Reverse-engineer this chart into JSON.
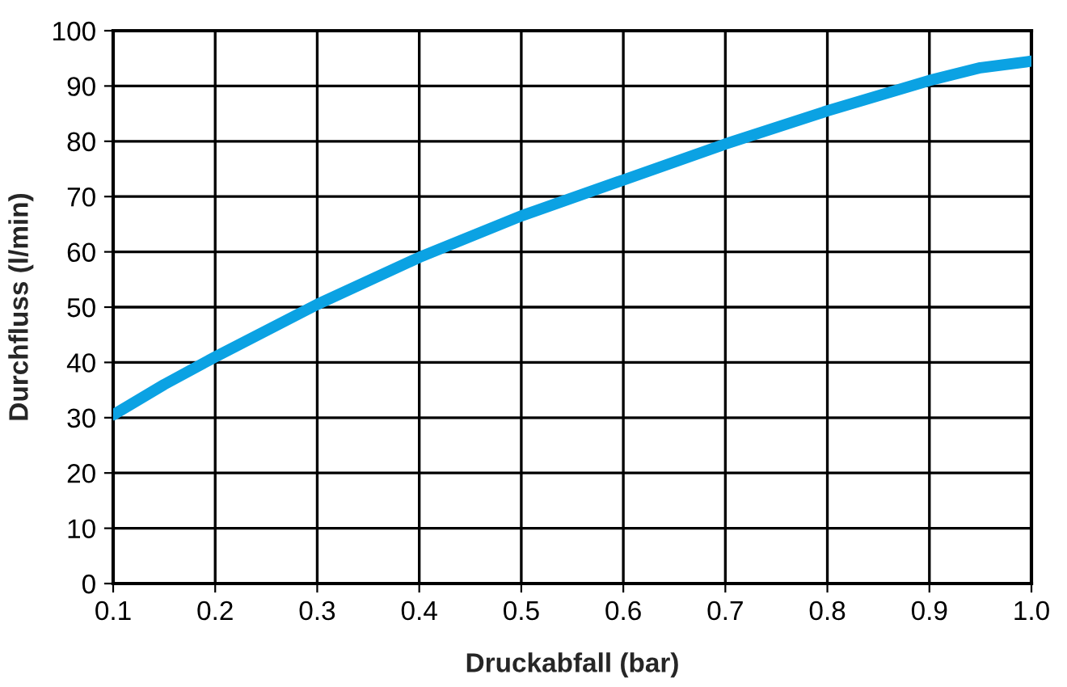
{
  "chart_data": {
    "type": "line",
    "xlabel": "Druckabfall (bar)",
    "ylabel": "Durchfluss (l/min)",
    "x": [
      0.1,
      0.15,
      0.2,
      0.3,
      0.4,
      0.5,
      0.6,
      0.7,
      0.8,
      0.9,
      0.95,
      1.0
    ],
    "series": [
      {
        "color": "#0ba2e3",
        "values": [
          30.5,
          36,
          41,
          50.5,
          59,
          66.5,
          73,
          79.5,
          85.5,
          91,
          93.3,
          94.5
        ]
      }
    ],
    "xlim": [
      0.1,
      1.0
    ],
    "ylim": [
      0,
      100
    ],
    "xticks": [
      {
        "value": 0.1,
        "label": "0.1"
      },
      {
        "value": 0.2,
        "label": "0.2"
      },
      {
        "value": 0.3,
        "label": "0.3"
      },
      {
        "value": 0.4,
        "label": "0.4"
      },
      {
        "value": 0.5,
        "label": "0.5"
      },
      {
        "value": 0.6,
        "label": "0.6"
      },
      {
        "value": 0.7,
        "label": "0.7"
      },
      {
        "value": 0.8,
        "label": "0.8"
      },
      {
        "value": 0.9,
        "label": "0.9"
      },
      {
        "value": 1.0,
        "label": "1.0"
      }
    ],
    "yticks": [
      0,
      10,
      20,
      30,
      40,
      50,
      60,
      70,
      80,
      90,
      100
    ],
    "grid": true,
    "marker": "none",
    "line_style": "solid"
  }
}
